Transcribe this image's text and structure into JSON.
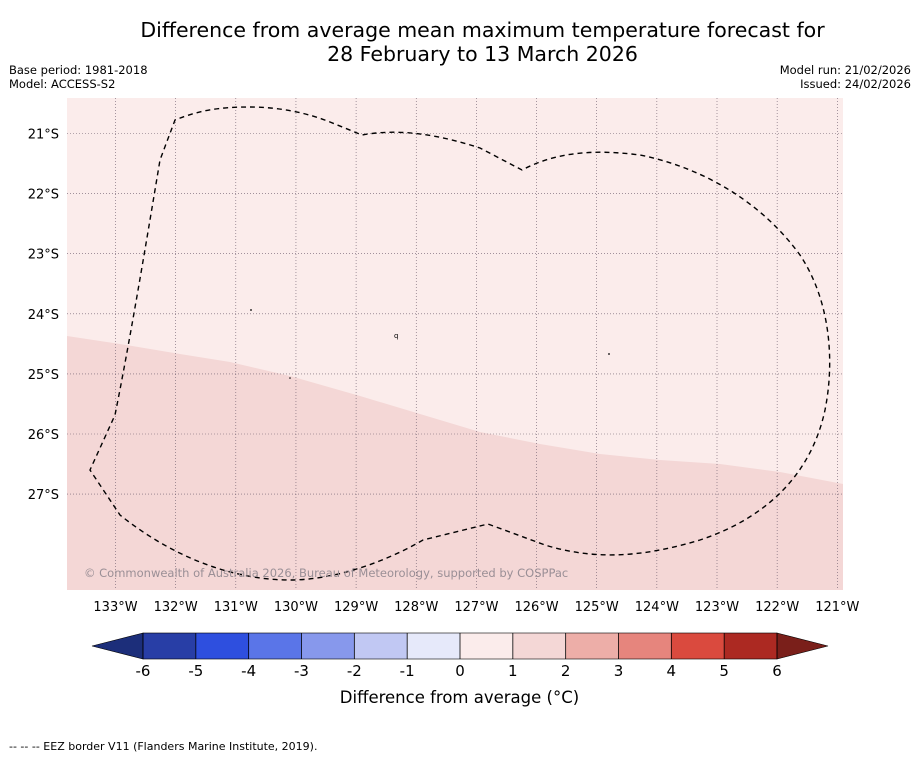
{
  "header": {
    "title_line1": "Difference from average mean maximum temperature forecast for",
    "title_line2": "28 February to 13 March 2026",
    "base_period": "Base period: 1981-2018",
    "model": "Model: ACCESS-S2",
    "model_run": "Model run: 21/02/2026",
    "issued": "Issued: 24/02/2026"
  },
  "map": {
    "copyright": "© Commonwealth of Australia 2026, Bureau of Meteorology, supported by COSPPac",
    "lat_labels": [
      "21°S",
      "22°S",
      "23°S",
      "24°S",
      "25°S",
      "26°S",
      "27°S"
    ],
    "lon_labels": [
      "133°W",
      "132°W",
      "131°W",
      "130°W",
      "129°W",
      "128°W",
      "127°W",
      "126°W",
      "125°W",
      "124°W",
      "123°W",
      "122°W",
      "121°W"
    ],
    "regions": [
      {
        "name": "anomaly 0 to 1",
        "color": "#fbeceb"
      },
      {
        "name": "anomaly 1 to 2",
        "color": "#f4d7d6"
      }
    ]
  },
  "colorbar": {
    "title": "Difference from average (°C)",
    "ticks": [
      "-6",
      "-5",
      "-4",
      "-3",
      "-2",
      "-1",
      "0",
      "1",
      "2",
      "3",
      "4",
      "5",
      "6"
    ],
    "colors": [
      "#283ea6",
      "#2e4fdf",
      "#5a75e8",
      "#8798ec",
      "#c1c8f3",
      "#e6e9fa",
      "#fbeceb",
      "#f4d7d6",
      "#edaea8",
      "#e6857d",
      "#da4a3e",
      "#ac2922"
    ],
    "under_color": "#1c2e7a",
    "over_color": "#7a1f1a"
  },
  "footer": {
    "legend": "--  --  -- EEZ border V11 (Flanders Marine Institute, 2019)."
  }
}
